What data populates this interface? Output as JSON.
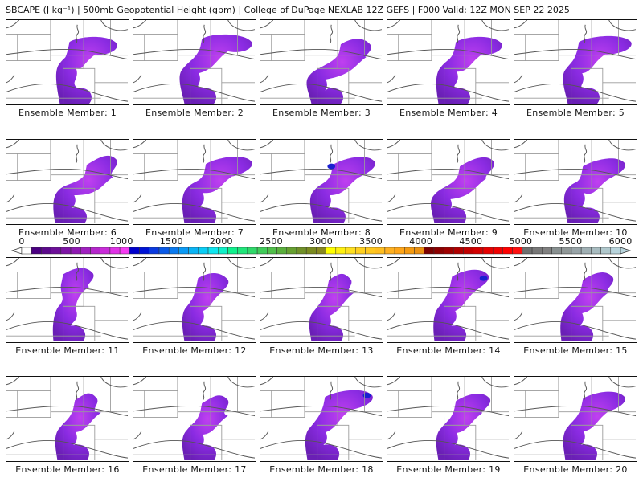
{
  "title": "SBCAPE (J kg⁻¹) | 500mb Geopotential Height (gpm) | College of DuPage NEXLAB 12Z GEFS | F000 Valid: 12Z MON SEP 22 2025",
  "colorbar": {
    "units": "J kg-1",
    "ticks": [
      "0",
      "500",
      "1000",
      "1500",
      "2000",
      "2500",
      "3000",
      "3500",
      "4000",
      "4500",
      "5000",
      "5500",
      "6000"
    ],
    "colors": [
      "#ffffff",
      "#4b0082",
      "#5c0a8c",
      "#6d0f99",
      "#7e15a6",
      "#8f1ab3",
      "#a020c0",
      "#b526cc",
      "#c92cd9",
      "#e033e6",
      "#f53cf2",
      "#0000cc",
      "#0014d6",
      "#0a3ae0",
      "#0a5ae8",
      "#0a7af0",
      "#0a9af5",
      "#0ab4f5",
      "#0acdf5",
      "#10e6f0",
      "#10f0c8",
      "#10f08c",
      "#20e67a",
      "#30d96a",
      "#40cc5a",
      "#50bf4a",
      "#5aaf3c",
      "#66a030",
      "#709028",
      "#7a8a20",
      "#888820",
      "#ffff00",
      "#fff010",
      "#ffe020",
      "#ffd020",
      "#ffc820",
      "#ffbe20",
      "#ffb020",
      "#ffa518",
      "#f59a10",
      "#eb9010",
      "#7a0000",
      "#8c0000",
      "#9e0000",
      "#b00000",
      "#c20000",
      "#d40000",
      "#e60000",
      "#f00000",
      "#ff0000",
      "#ff1010",
      "#707070",
      "#787878",
      "#808080",
      "#889090",
      "#909898",
      "#98a4a8",
      "#a0b0b4",
      "#a8bcc0",
      "#b0c8cc",
      "#b8d4dc"
    ]
  },
  "members": [
    {
      "label": "Ensemble Member: 1"
    },
    {
      "label": "Ensemble Member: 2"
    },
    {
      "label": "Ensemble Member: 3"
    },
    {
      "label": "Ensemble Member: 4"
    },
    {
      "label": "Ensemble Member: 5"
    },
    {
      "label": "Ensemble Member: 6"
    },
    {
      "label": "Ensemble Member: 7"
    },
    {
      "label": "Ensemble Member: 8"
    },
    {
      "label": "Ensemble Member: 9"
    },
    {
      "label": "Ensemble Member: 10"
    },
    {
      "label": "Ensemble Member: 11"
    },
    {
      "label": "Ensemble Member: 12"
    },
    {
      "label": "Ensemble Member: 13"
    },
    {
      "label": "Ensemble Member: 14"
    },
    {
      "label": "Ensemble Member: 15"
    },
    {
      "label": "Ensemble Member: 16"
    },
    {
      "label": "Ensemble Member: 17"
    },
    {
      "label": "Ensemble Member: 18"
    },
    {
      "label": "Ensemble Member: 19"
    },
    {
      "label": "Ensemble Member: 20"
    }
  ],
  "field_colors": {
    "cape_low": "#6a1fb5",
    "cape_mid": "#8a2be2",
    "cape_high": "#c040f0",
    "cape_peak": "#1a20d0",
    "borders": "#9a9a9a",
    "height_contours": "#555555"
  }
}
